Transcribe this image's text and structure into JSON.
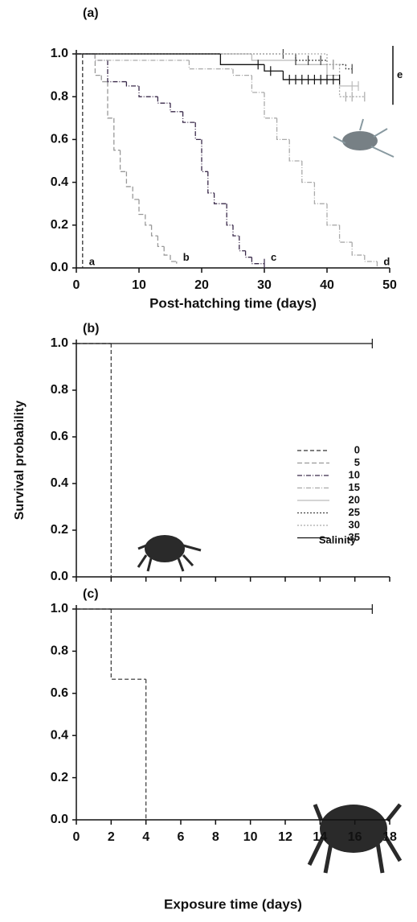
{
  "chart_data": [
    {
      "type": "step",
      "panel": "(a)",
      "xlabel": "Post-hatching time (days)",
      "xlim": [
        0,
        50
      ],
      "xticks": [
        0,
        10,
        20,
        30,
        40,
        50
      ],
      "xtick_labels": true,
      "ylim": [
        0,
        1
      ],
      "yticks": [
        {
          "value": 0,
          "label": "0.0"
        },
        0.2,
        0.4,
        0.6,
        0.8,
        {
          "value": 1,
          "label": "1.0"
        }
      ],
      "group_label": "e",
      "series": [
        {
          "name": "0",
          "color": "#333333",
          "dash": "5,3",
          "label": "a",
          "x": [
            0,
            1
          ],
          "values": [
            1,
            0
          ]
        },
        {
          "name": "5",
          "color": "#999999",
          "dash": "6,3",
          "label": "b",
          "x": [
            0,
            3,
            4,
            5,
            6,
            7,
            8,
            9,
            10,
            11,
            12,
            13,
            14,
            15,
            16
          ],
          "values": [
            1,
            0.9,
            0.87,
            0.7,
            0.55,
            0.45,
            0.38,
            0.32,
            0.25,
            0.2,
            0.15,
            0.1,
            0.06,
            0.03,
            0.02
          ]
        },
        {
          "name": "10",
          "color": "#3a2a4a",
          "dash": "6,2,1,2",
          "label": "c",
          "x": [
            0,
            3,
            5,
            8,
            10,
            13,
            15,
            17,
            19,
            20,
            21,
            22,
            24,
            25,
            26,
            27,
            28
          ],
          "values": [
            1,
            0.97,
            0.87,
            0.85,
            0.8,
            0.77,
            0.73,
            0.68,
            0.6,
            0.45,
            0.35,
            0.3,
            0.2,
            0.15,
            0.08,
            0.05,
            0.02
          ],
          "censored": [
            30
          ]
        },
        {
          "name": "15",
          "color": "#aaaaaa",
          "dash": "6,2,1,2",
          "label": "d",
          "x": [
            0,
            3,
            18,
            25,
            28,
            30,
            32,
            34,
            36,
            38,
            40,
            42,
            44,
            46,
            48
          ],
          "values": [
            1,
            0.97,
            0.93,
            0.9,
            0.82,
            0.7,
            0.6,
            0.5,
            0.4,
            0.3,
            0.2,
            0.12,
            0.06,
            0.03,
            0
          ]
        },
        {
          "name": "20",
          "color": "#bbbbbb",
          "dash": "",
          "x": [
            0,
            28,
            35,
            40,
            42
          ],
          "values": [
            1,
            0.97,
            0.95,
            0.9,
            0.85
          ],
          "censored": [
            44,
            45
          ]
        },
        {
          "name": "25",
          "color": "#444444",
          "dash": "2,2",
          "x": [
            0,
            35,
            40,
            43
          ],
          "values": [
            1,
            0.97,
            0.95,
            0.93
          ],
          "censored": [
            33,
            35,
            37,
            39,
            41,
            44
          ]
        },
        {
          "name": "30",
          "color": "#aaaaaa",
          "dash": "2,2",
          "x": [
            0,
            40,
            42
          ],
          "values": [
            1,
            0.95,
            0.8
          ],
          "censored": [
            41,
            43,
            44,
            46
          ]
        },
        {
          "name": "35",
          "color": "#111111",
          "dash": "",
          "x": [
            0,
            23,
            30,
            33
          ],
          "values": [
            1,
            0.95,
            0.92,
            0.88
          ],
          "censored": [
            29,
            31,
            34,
            35,
            36,
            37,
            38,
            39,
            40,
            41,
            42
          ]
        }
      ]
    },
    {
      "type": "step",
      "panel": "(b)",
      "ylabel": "Survival probability",
      "legend_title": "Salinity",
      "xlim": [
        0,
        18
      ],
      "xticks": [
        0,
        2,
        4,
        6,
        8,
        10,
        12,
        14,
        16,
        18
      ],
      "xtick_labels": false,
      "ylim": [
        0,
        1
      ],
      "yticks": [
        {
          "value": 0,
          "label": "0.0"
        },
        0.2,
        0.4,
        0.6,
        0.8,
        {
          "value": 1,
          "label": "1.0"
        }
      ],
      "series": [
        {
          "color": "#444444",
          "dash": "5,3",
          "x": [
            0,
            2
          ],
          "values": [
            1,
            0
          ]
        },
        {
          "color": "#111111",
          "dash": "",
          "x": [
            0
          ],
          "values": [
            1
          ],
          "censored": [
            17
          ]
        }
      ]
    },
    {
      "type": "step",
      "panel": "(c)",
      "xlabel": "Exposure time (days)",
      "xlim": [
        0,
        18
      ],
      "xticks": [
        0,
        2,
        4,
        6,
        8,
        10,
        12,
        14,
        16,
        18
      ],
      "xtick_labels": true,
      "ylim": [
        0,
        1
      ],
      "yticks": [
        {
          "value": 0,
          "label": "0.0"
        },
        0.2,
        0.4,
        0.6,
        0.8,
        {
          "value": 1,
          "label": "1.0"
        }
      ],
      "series": [
        {
          "color": "#444444",
          "dash": "5,3",
          "x": [
            0,
            2,
            4
          ],
          "values": [
            1,
            0.667,
            0
          ]
        },
        {
          "color": "#111111",
          "dash": "",
          "x": [
            0
          ],
          "values": [
            1
          ],
          "censored": [
            17
          ]
        }
      ]
    }
  ]
}
